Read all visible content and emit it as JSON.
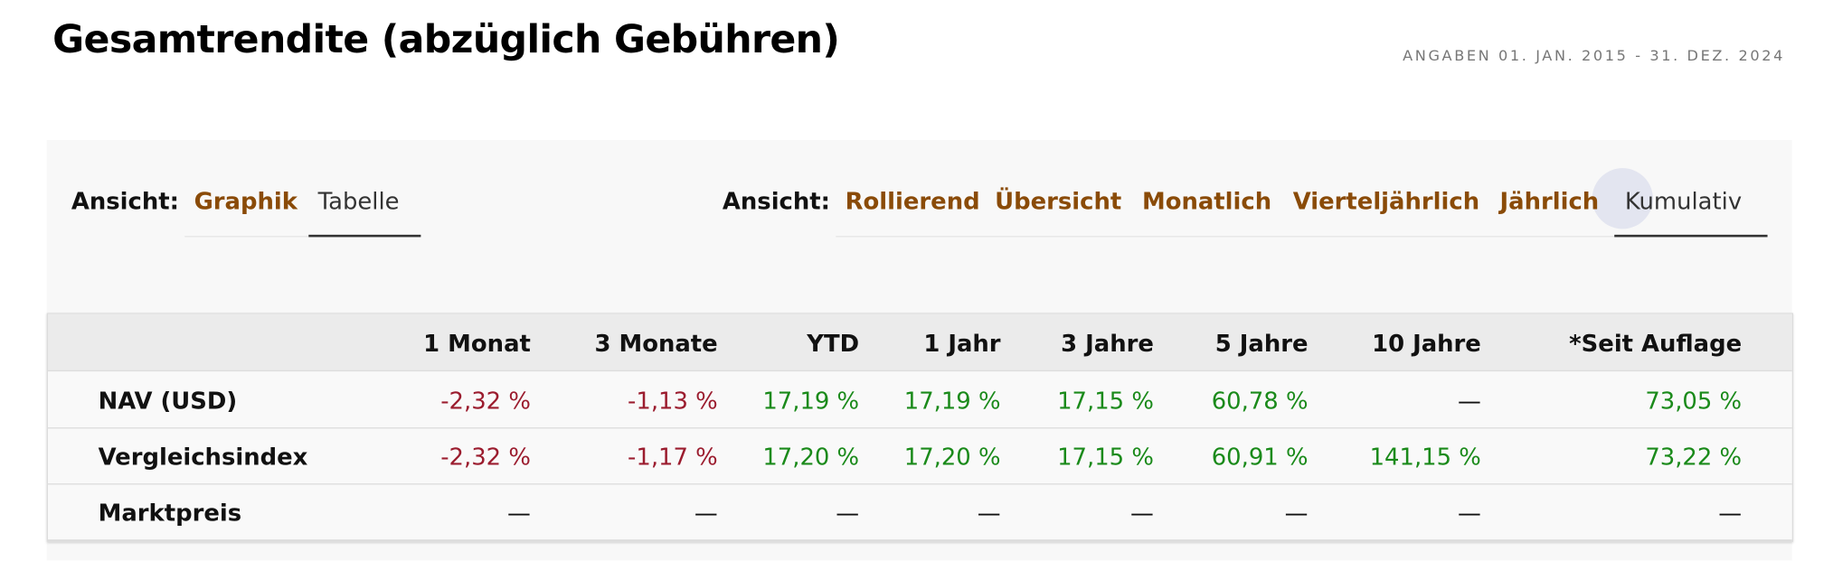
{
  "header": {
    "title": "Gesamtrendite (abzüglich Gebühren)",
    "date": "ANGABEN 01. JAN. 2015 - 31. DEZ. 2024"
  },
  "view_left": {
    "label": "Ansicht:",
    "tabs": [
      "Graphik",
      "Tabelle"
    ],
    "active": 1
  },
  "view_right": {
    "label": "Ansicht:",
    "tabs": [
      "Rollierend",
      "Übersicht",
      "Monatlich",
      "Vierteljährlich",
      "Jährlich",
      "Kumulativ"
    ],
    "active": 5
  },
  "table": {
    "columns": [
      "1 Monat",
      "3 Monate",
      "YTD",
      "1 Jahr",
      "3 Jahre",
      "5 Jahre",
      "10 Jahre",
      "*Seit Auflage"
    ],
    "rows": [
      {
        "label": "NAV (USD)",
        "values": [
          "-2,32 %",
          "-1,13 %",
          "17,19 %",
          "17,19 %",
          "17,15 %",
          "60,78 %",
          "—",
          "73,05 %"
        ]
      },
      {
        "label": "Vergleichsindex",
        "values": [
          "-2,32 %",
          "-1,17 %",
          "17,20 %",
          "17,20 %",
          "17,15 %",
          "60,91 %",
          "141,15 %",
          "73,22 %"
        ]
      },
      {
        "label": "Marktpreis",
        "values": [
          "—",
          "—",
          "—",
          "—",
          "—",
          "—",
          "—",
          "—"
        ]
      }
    ]
  }
}
